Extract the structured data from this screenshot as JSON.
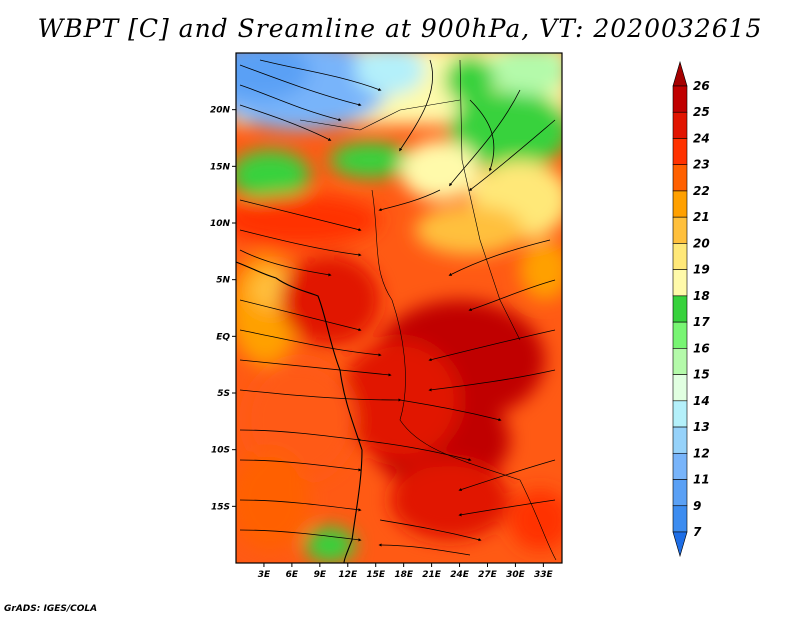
{
  "title": "WBPT [C] and Sreamline at 900hPa, VT: 2020032615",
  "credit": "GrADS: IGES/COLA",
  "map": {
    "lon_range": [
      0,
      35
    ],
    "lat_range": [
      -20,
      25
    ],
    "lat_labels": [
      {
        "lat": 20,
        "text": "20N"
      },
      {
        "lat": 15,
        "text": "15N"
      },
      {
        "lat": 10,
        "text": "10N"
      },
      {
        "lat": 5,
        "text": "5N"
      },
      {
        "lat": 0,
        "text": "EQ"
      },
      {
        "lat": -5,
        "text": "5S"
      },
      {
        "lat": -10,
        "text": "10S"
      },
      {
        "lat": -15,
        "text": "15S"
      }
    ],
    "lon_labels": [
      {
        "lon": 3,
        "text": "3E"
      },
      {
        "lon": 6,
        "text": "6E"
      },
      {
        "lon": 9,
        "text": "9E"
      },
      {
        "lon": 12,
        "text": "12E"
      },
      {
        "lon": 15,
        "text": "15E"
      },
      {
        "lon": 18,
        "text": "18E"
      },
      {
        "lon": 21,
        "text": "21E"
      },
      {
        "lon": 24,
        "text": "24E"
      },
      {
        "lon": 27,
        "text": "27E"
      },
      {
        "lon": 30,
        "text": "30E"
      },
      {
        "lon": 33,
        "text": "33E"
      }
    ]
  },
  "colorbar": {
    "labels": [
      "7",
      "9",
      "11",
      "12",
      "13",
      "14",
      "15",
      "16",
      "17",
      "18",
      "19",
      "20",
      "21",
      "22",
      "23",
      "24",
      "25",
      "26"
    ],
    "colors": [
      "#1e6ee6",
      "#3c8cf0",
      "#5aa0f5",
      "#78b4fa",
      "#96d2fa",
      "#b4f0fa",
      "#e1ffe1",
      "#b4faaa",
      "#78f573",
      "#37d23c",
      "#fffaaa",
      "#ffe878",
      "#ffc03c",
      "#ffa000",
      "#ff6000",
      "#ff3200",
      "#e11400",
      "#c00000",
      "#a50000"
    ]
  }
}
